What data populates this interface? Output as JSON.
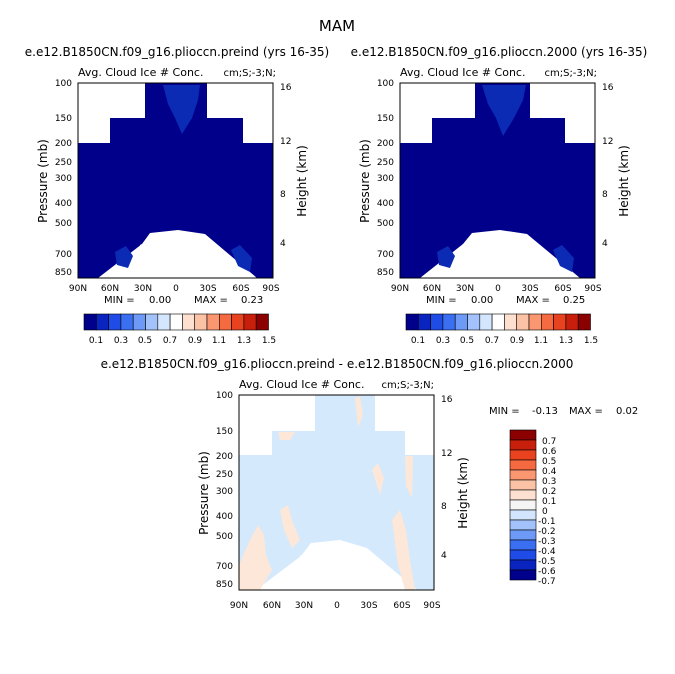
{
  "page_title": "MAM",
  "colors": {
    "navy": "#00008b",
    "navy_light": "#0c2bb5",
    "diff_blue": "#d4e9fb",
    "diff_peach": "#fde7d9",
    "frame": "#000000"
  },
  "chart_data": [
    {
      "type": "heatmap",
      "title": "e.e12.B1850CN.f09_g16.plioccn.preind (yrs 16-35)",
      "subtitle": "Avg. Cloud Ice # Conc.",
      "units": "cm;S;-3;N;",
      "ylabel": "Pressure (mb)",
      "y2label": "Height (km)",
      "x_ticks": [
        "90N",
        "60N",
        "30N",
        "0",
        "30S",
        "60S",
        "90S"
      ],
      "y_ticks": [
        "100",
        "150",
        "200",
        "250",
        "300",
        "400",
        "500",
        "700",
        "850"
      ],
      "y2_ticks": [
        "16",
        "12",
        "8",
        "4"
      ],
      "min_label": "MIN =",
      "min_value": "0.00",
      "max_label": "MAX =",
      "max_value": "0.23",
      "colorbar_labels": [
        "0.1",
        "0.3",
        "0.5",
        "0.7",
        "0.9",
        "1.1",
        "1.3",
        "1.5"
      ]
    },
    {
      "type": "heatmap",
      "title": "e.e12.B1850CN.f09_g16.plioccn.2000 (yrs 16-35)",
      "subtitle": "Avg. Cloud Ice # Conc.",
      "units": "cm;S;-3;N;",
      "ylabel": "Pressure (mb)",
      "y2label": "Height (km)",
      "x_ticks": [
        "90N",
        "60N",
        "30N",
        "0",
        "30S",
        "60S",
        "90S"
      ],
      "y_ticks": [
        "100",
        "150",
        "200",
        "250",
        "300",
        "400",
        "500",
        "700",
        "850"
      ],
      "y2_ticks": [
        "16",
        "12",
        "8",
        "4"
      ],
      "min_label": "MIN =",
      "min_value": "0.00",
      "max_label": "MAX =",
      "max_value": "0.25",
      "colorbar_labels": [
        "0.1",
        "0.3",
        "0.5",
        "0.7",
        "0.9",
        "1.1",
        "1.3",
        "1.5"
      ]
    },
    {
      "type": "heatmap",
      "title": "e.e12.B1850CN.f09_g16.plioccn.preind - e.e12.B1850CN.f09_g16.plioccn.2000",
      "subtitle": "Avg. Cloud Ice # Conc.",
      "units": "cm;S;-3;N;",
      "ylabel": "Pressure (mb)",
      "y2label": "Height (km)",
      "x_ticks": [
        "90N",
        "60N",
        "30N",
        "0",
        "30S",
        "60S",
        "90S"
      ],
      "y_ticks": [
        "100",
        "150",
        "200",
        "250",
        "300",
        "400",
        "500",
        "700",
        "850"
      ],
      "y2_ticks": [
        "16",
        "12",
        "8",
        "4"
      ],
      "min_label": "MIN =",
      "min_value": "-0.13",
      "max_label": "MAX =",
      "max_value": "0.02",
      "colorbar_labels": [
        "0.7",
        "0.6",
        "0.5",
        "0.4",
        "0.3",
        "0.2",
        "0.1",
        "0",
        "-0.1",
        "-0.2",
        "-0.3",
        "-0.4",
        "-0.5",
        "-0.6",
        "-0.7"
      ]
    }
  ],
  "colorbar_colors": [
    "#00008b",
    "#0a24c0",
    "#1f4be6",
    "#3b6ff2",
    "#6d99f7",
    "#a3c2fb",
    "#d4e6fd",
    "#ffffff",
    "#fde0d0",
    "#fcc2a5",
    "#fa9670",
    "#f56a40",
    "#e8421e",
    "#c71f0b",
    "#8b0000"
  ],
  "diff_colorbar_colors": [
    "#8b0000",
    "#c71f0b",
    "#e8421e",
    "#f56a40",
    "#fa9670",
    "#fcc2a5",
    "#fde0d0",
    "#f5f5f5",
    "#d4e6fd",
    "#a3c2fb",
    "#6d99f7",
    "#3b6ff2",
    "#1f4be6",
    "#0a24c0",
    "#00008b"
  ]
}
